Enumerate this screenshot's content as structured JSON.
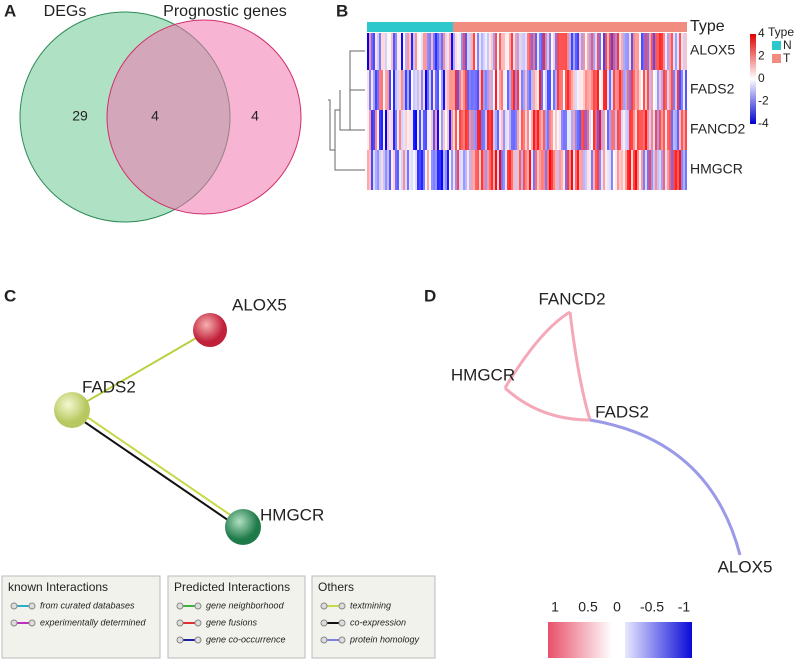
{
  "panel_a": {
    "label": "A",
    "set_names": [
      "DEGs",
      "Prognostic genes"
    ],
    "counts": [
      29,
      4,
      4
    ]
  },
  "panel_b": {
    "label": "B",
    "annotation_label": "Type",
    "legend_title": "Type",
    "groups": [
      "N",
      "T"
    ],
    "genes": [
      "ALOX5",
      "FADS2",
      "FANCD2",
      "HMGCR"
    ],
    "color_ticks": [
      4,
      2,
      0,
      -2,
      -4
    ]
  },
  "panel_c": {
    "label": "C",
    "nodes": [
      "ALOX5",
      "FADS2",
      "HMGCR"
    ],
    "legend": [
      {
        "title": "known Interactions",
        "items": [
          "from curated databases",
          "experimentally determined"
        ]
      },
      {
        "title": "Predicted Interactions",
        "items": [
          "gene neighborhood",
          "gene fusions",
          "gene co-occurrence"
        ]
      },
      {
        "title": "Others",
        "items": [
          "textmining",
          "co-expression",
          "protein homology"
        ]
      }
    ]
  },
  "panel_d": {
    "label": "D",
    "nodes": [
      "FANCD2",
      "HMGCR",
      "FADS2",
      "ALOX5"
    ],
    "scale_ticks": [
      1,
      0.5,
      0,
      -0.5,
      -1
    ]
  }
}
